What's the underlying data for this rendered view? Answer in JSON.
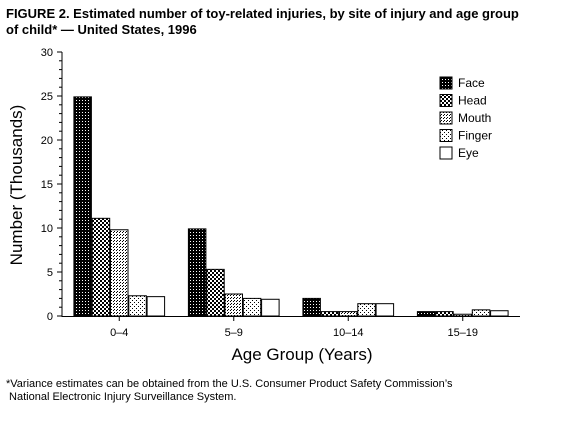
{
  "figure": {
    "title_line1": "FIGURE 2. Estimated number of toy-related injuries, by site of injury and age group",
    "title_line2": "of child* — United States, 1996",
    "footnote_line1": "*Variance estimates can be obtained from the U.S. Consumer Product Safety Commission’s",
    "footnote_line2": " National Electronic Injury Surveillance System."
  },
  "chart_data": {
    "type": "bar",
    "title": "FIGURE 2. Estimated number of toy-related injuries, by site of injury and age group of child* — United States, 1996",
    "xlabel": "Age Group (Years)",
    "ylabel": "Number (Thousands)",
    "ylim": [
      0,
      30
    ],
    "yticks": [
      "0",
      "5",
      "10",
      "15",
      "20",
      "25",
      "30"
    ],
    "categories": [
      "0–4",
      "5–9",
      "10–14",
      "15–19"
    ],
    "series": [
      {
        "name": "Face",
        "values": [
          24.9,
          9.9,
          2.0,
          0.5
        ],
        "pattern": "dense-dots"
      },
      {
        "name": "Head",
        "values": [
          11.1,
          5.3,
          0.5,
          0.5
        ],
        "pattern": "checker"
      },
      {
        "name": "Mouth",
        "values": [
          9.8,
          2.5,
          0.5,
          0.2
        ],
        "pattern": "hlines"
      },
      {
        "name": "Finger",
        "values": [
          2.3,
          2.0,
          1.4,
          0.7
        ],
        "pattern": "sparse-dots"
      },
      {
        "name": "Eye",
        "values": [
          2.2,
          1.9,
          1.4,
          0.6
        ],
        "pattern": "blank"
      }
    ],
    "legend_position": "top-right",
    "grid": false
  }
}
